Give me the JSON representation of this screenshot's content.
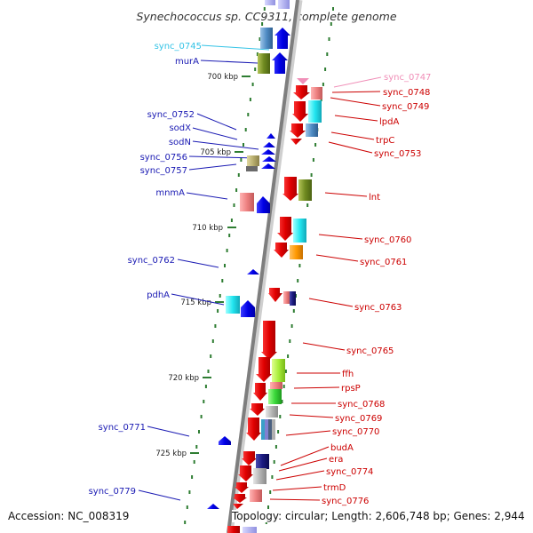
{
  "title": "Synechococcus sp. CC9311, complete genome",
  "accession": "Accession: NC_008319",
  "topology": "Topology: circular; Length: 2,606,748 bp; Genes: 2,944",
  "colors": {
    "backbone": "#808080",
    "minus_strand_label": "#1a1ab3",
    "plus_strand_label": "#cc0000",
    "highlight_left": "#33c3e6",
    "highlight_right": "#f08fb8",
    "kbp_tick": "#2e7d32"
  },
  "kbp_marks": [
    "700 kbp",
    "705 kbp",
    "710 kbp",
    "715 kbp",
    "720 kbp",
    "725 kbp"
  ],
  "left_labels": [
    "sync_0745",
    "murA",
    "sync_0752",
    "sodX",
    "sodN",
    "sync_0756",
    "sync_0757",
    "mnmA",
    "sync_0762",
    "pdhA",
    "sync_0771",
    "sync_0779"
  ],
  "right_labels": [
    "sync_0747",
    "sync_0748",
    "sync_0749",
    "lpdA",
    "trpC",
    "sync_0753",
    "lnt",
    "sync_0760",
    "sync_0761",
    "sync_0763",
    "sync_0765",
    "ffh",
    "rpsP",
    "sync_0768",
    "sync_0769",
    "sync_0770",
    "budA",
    "era",
    "sync_0774",
    "trmD",
    "sync_0776"
  ]
}
